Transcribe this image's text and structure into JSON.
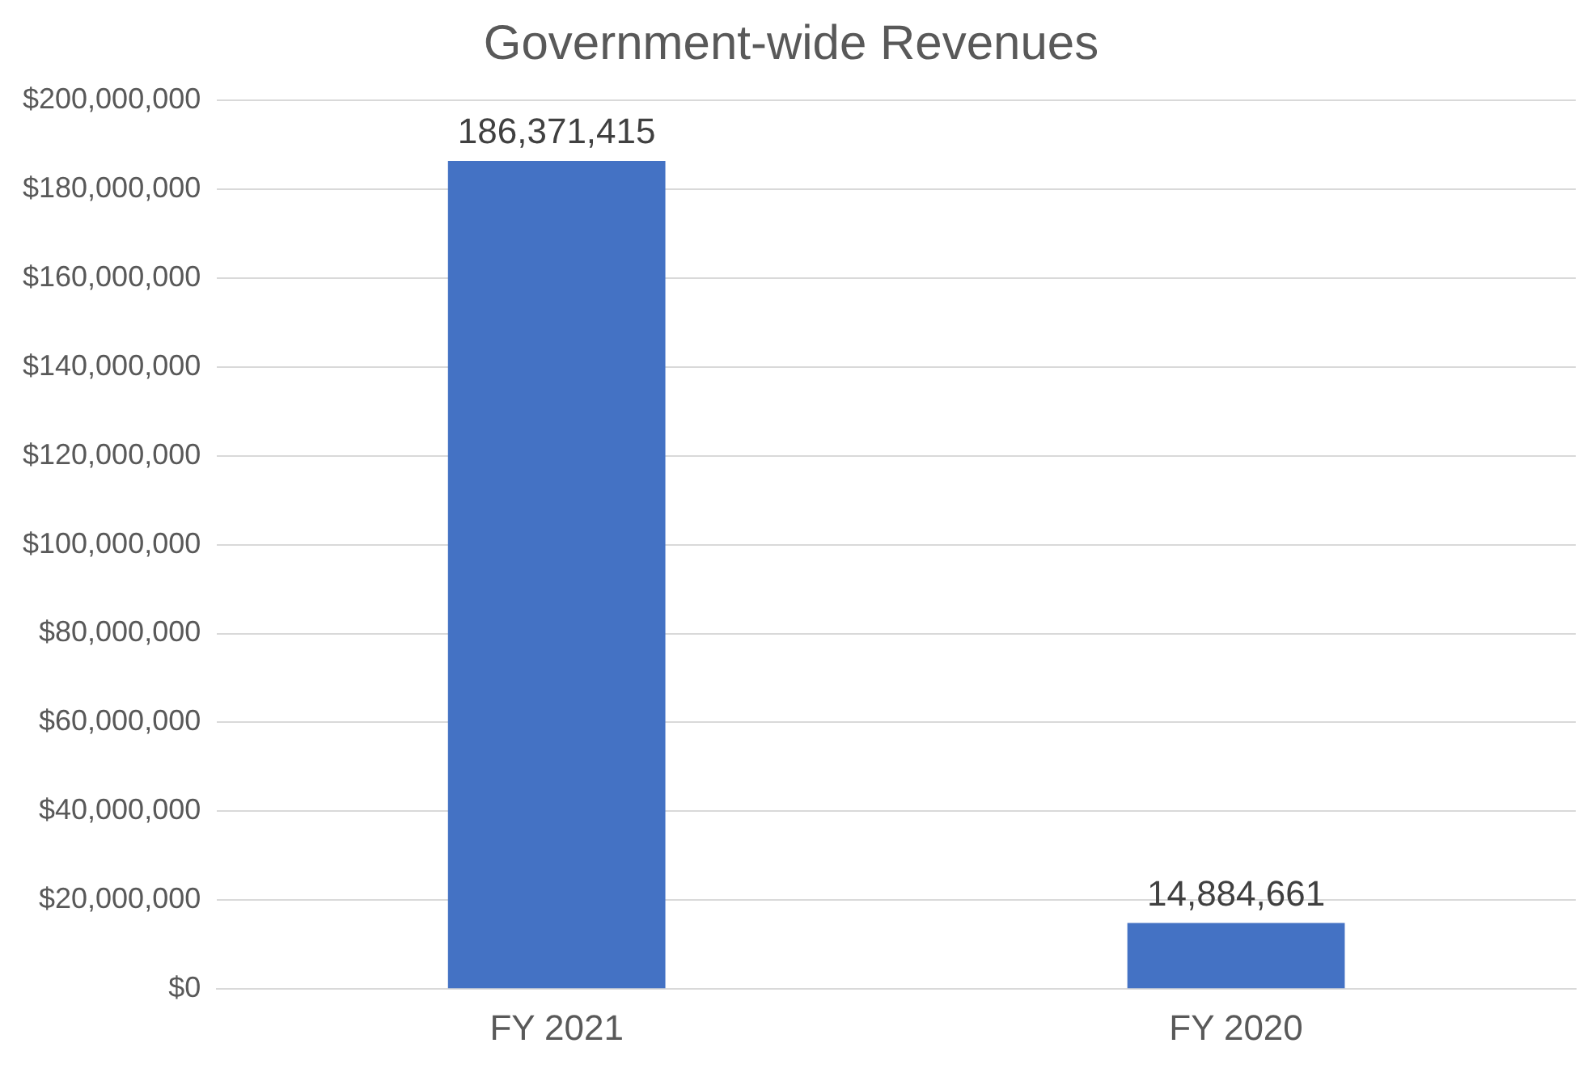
{
  "chart_data": {
    "type": "bar",
    "title": "Government-wide Revenues",
    "categories": [
      "FY 2021",
      "FY 2020"
    ],
    "values": [
      186371415,
      14884661
    ],
    "color": "#4472c4",
    "ylim": [
      0,
      200000000
    ],
    "yticks": [
      {
        "value": 0,
        "label": "$0"
      },
      {
        "value": 20000000,
        "label": "$20,000,000"
      },
      {
        "value": 40000000,
        "label": "$40,000,000"
      },
      {
        "value": 60000000,
        "label": "$60,000,000"
      },
      {
        "value": 80000000,
        "label": "$80,000,000"
      },
      {
        "value": 100000000,
        "label": "$100,000,000"
      },
      {
        "value": 120000000,
        "label": "$120,000,000"
      },
      {
        "value": 140000000,
        "label": "$140,000,000"
      },
      {
        "value": 160000000,
        "label": "$160,000,000"
      },
      {
        "value": 180000000,
        "label": "$180,000,000"
      },
      {
        "value": 200000000,
        "label": "$200,000,000"
      }
    ],
    "value_labels": [
      "186,371,415",
      "14,884,661"
    ],
    "grid": "y"
  }
}
